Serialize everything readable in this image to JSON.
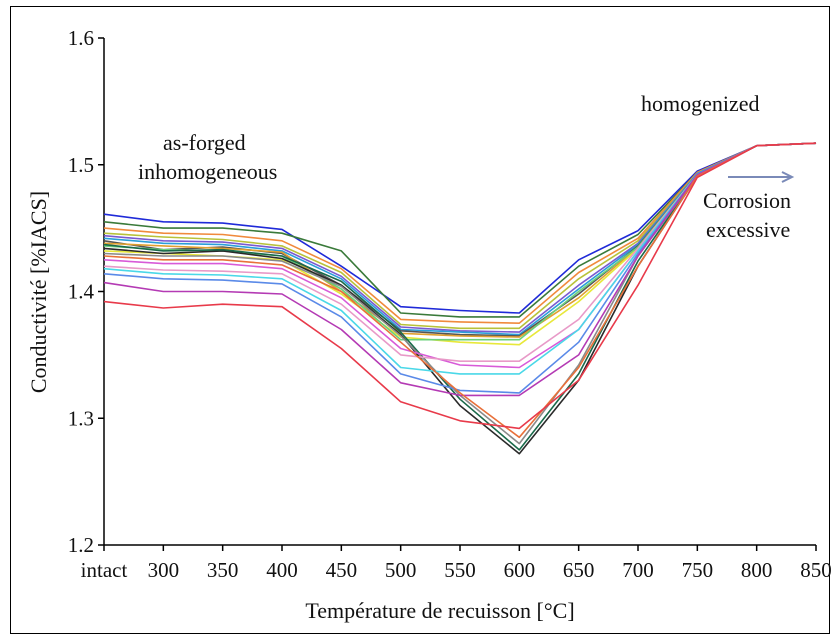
{
  "chart_data": {
    "type": "line",
    "title": "",
    "xlabel": "Température de recuisson  [°C]",
    "ylabel": "Conductivité  [%IACS]",
    "x": [
      "intact",
      "300",
      "350",
      "400",
      "450",
      "500",
      "550",
      "600",
      "650",
      "700",
      "750",
      "800",
      "850"
    ],
    "ylim": [
      1.2,
      1.6
    ],
    "yticks": [
      "1.2",
      "1.3",
      "1.4",
      "1.5",
      "1.6"
    ],
    "grid": false,
    "legend": "none",
    "annotations": {
      "as_forged_line1": "as-forged",
      "as_forged_line2": "inhomogeneous",
      "homogenized": "homogenized",
      "corrosion_line1": "Corrosion",
      "corrosion_line2": "excessive"
    },
    "series": [
      {
        "color": "#1f2ad8",
        "values": [
          1.461,
          1.455,
          1.454,
          1.449,
          1.42,
          1.388,
          1.385,
          1.383,
          1.425,
          1.448,
          1.495,
          1.515,
          1.517
        ]
      },
      {
        "color": "#3a7a3a",
        "values": [
          1.455,
          1.45,
          1.45,
          1.446,
          1.432,
          1.383,
          1.38,
          1.38,
          1.42,
          1.445,
          1.494,
          1.515,
          1.517
        ]
      },
      {
        "color": "#f08a3c",
        "values": [
          1.45,
          1.446,
          1.445,
          1.44,
          1.418,
          1.378,
          1.376,
          1.375,
          1.415,
          1.442,
          1.494,
          1.515,
          1.517
        ]
      },
      {
        "color": "#b8c23a",
        "values": [
          1.446,
          1.443,
          1.441,
          1.436,
          1.415,
          1.374,
          1.371,
          1.371,
          1.41,
          1.44,
          1.493,
          1.515,
          1.517
        ]
      },
      {
        "color": "#7a5ad0",
        "values": [
          1.444,
          1.44,
          1.439,
          1.434,
          1.412,
          1.372,
          1.369,
          1.368,
          1.405,
          1.438,
          1.493,
          1.515,
          1.517
        ]
      },
      {
        "color": "#2a9ed8",
        "values": [
          1.442,
          1.438,
          1.437,
          1.432,
          1.41,
          1.37,
          1.368,
          1.366,
          1.402,
          1.437,
          1.493,
          1.515,
          1.517
        ]
      },
      {
        "color": "#555555",
        "values": [
          1.44,
          1.433,
          1.435,
          1.43,
          1.405,
          1.369,
          1.366,
          1.365,
          1.398,
          1.436,
          1.492,
          1.515,
          1.517
        ]
      },
      {
        "color": "#e0a030",
        "values": [
          1.438,
          1.436,
          1.434,
          1.431,
          1.4,
          1.367,
          1.365,
          1.364,
          1.395,
          1.435,
          1.492,
          1.515,
          1.517
        ]
      },
      {
        "color": "#e8e83a",
        "values": [
          1.432,
          1.43,
          1.428,
          1.425,
          1.398,
          1.364,
          1.36,
          1.358,
          1.392,
          1.434,
          1.492,
          1.515,
          1.517
        ]
      },
      {
        "color": "#6ad07a",
        "values": [
          1.436,
          1.433,
          1.432,
          1.428,
          1.402,
          1.362,
          1.362,
          1.362,
          1.4,
          1.435,
          1.492,
          1.515,
          1.517
        ]
      },
      {
        "color": "#2a2a2a",
        "values": [
          1.434,
          1.43,
          1.432,
          1.426,
          1.405,
          1.366,
          1.31,
          1.272,
          1.33,
          1.42,
          1.491,
          1.515,
          1.517
        ]
      },
      {
        "color": "#1a6a4a",
        "values": [
          1.437,
          1.432,
          1.433,
          1.428,
          1.408,
          1.368,
          1.315,
          1.275,
          1.335,
          1.424,
          1.491,
          1.515,
          1.517
        ]
      },
      {
        "color": "#8a8a8a",
        "values": [
          1.43,
          1.428,
          1.428,
          1.424,
          1.404,
          1.365,
          1.318,
          1.28,
          1.342,
          1.428,
          1.491,
          1.515,
          1.517
        ]
      },
      {
        "color": "#d85ad8",
        "values": [
          1.425,
          1.422,
          1.422,
          1.418,
          1.395,
          1.355,
          1.342,
          1.34,
          1.37,
          1.432,
          1.492,
          1.515,
          1.517
        ]
      },
      {
        "color": "#e89ac8",
        "values": [
          1.42,
          1.417,
          1.416,
          1.414,
          1.39,
          1.35,
          1.345,
          1.345,
          1.378,
          1.434,
          1.492,
          1.515,
          1.517
        ]
      },
      {
        "color": "#4ad8e8",
        "values": [
          1.418,
          1.414,
          1.413,
          1.41,
          1.385,
          1.34,
          1.335,
          1.335,
          1.37,
          1.432,
          1.492,
          1.515,
          1.517
        ]
      },
      {
        "color": "#5a8ae8",
        "values": [
          1.414,
          1.41,
          1.409,
          1.406,
          1.38,
          1.335,
          1.322,
          1.32,
          1.36,
          1.43,
          1.492,
          1.515,
          1.517
        ]
      },
      {
        "color": "#b43ab4",
        "values": [
          1.407,
          1.4,
          1.4,
          1.398,
          1.37,
          1.328,
          1.318,
          1.318,
          1.35,
          1.428,
          1.492,
          1.515,
          1.517
        ]
      },
      {
        "color": "#e8703a",
        "values": [
          1.428,
          1.425,
          1.425,
          1.421,
          1.4,
          1.36,
          1.32,
          1.285,
          1.34,
          1.42,
          1.491,
          1.515,
          1.517
        ]
      },
      {
        "color": "#e83a4a",
        "values": [
          1.392,
          1.387,
          1.39,
          1.388,
          1.355,
          1.313,
          1.298,
          1.292,
          1.33,
          1.405,
          1.49,
          1.515,
          1.517
        ]
      }
    ]
  }
}
